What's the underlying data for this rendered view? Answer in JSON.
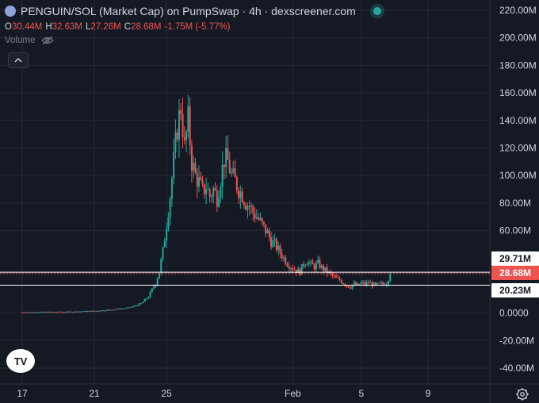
{
  "header": {
    "title": "PENGUIN/SOL (Market Cap) on PumpSwap · 4h · dexscreener.com",
    "ohlc": {
      "o_label": "O",
      "o_value": "30.44M",
      "h_label": "H",
      "h_value": "32.63M",
      "l_label": "L",
      "l_value": "27.26M",
      "c_label": "C",
      "c_value": "28.68M",
      "change": "-1.75M (-5.77%)"
    },
    "volume_label": "Volume"
  },
  "colors": {
    "up": "#26a69a",
    "down": "#ef5350",
    "background": "#151924",
    "grid": "#252a37"
  },
  "icons": {
    "symbol": "penguin-token-icon",
    "live": "live-status-dot",
    "eye": "eye-off-icon",
    "collapse": "chevron-up-icon",
    "logo": "tradingview-logo",
    "settings": "settings-icon"
  },
  "logo_text": "TV",
  "chart_data": {
    "type": "candlestick",
    "title": "PENGUIN/SOL (Market Cap) on PumpSwap · 4h · dexscreener.com",
    "y_tick_labels": [
      "220.00M",
      "200.00M",
      "180.00M",
      "160.00M",
      "140.00M",
      "120.00M",
      "100.00M",
      "80.00M",
      "60.00M",
      "0.0000",
      "-20.00M",
      "-40.00M"
    ],
    "y_ticks": [
      220,
      200,
      180,
      160,
      140,
      120,
      100,
      80,
      60,
      0,
      -20,
      -40
    ],
    "x_tick_labels": [
      "17",
      "21",
      "25",
      "Feb",
      "5",
      "9"
    ],
    "x_tick_index": [
      0,
      40,
      80,
      150,
      188,
      225
    ],
    "ylim": [
      -45,
      225
    ],
    "grid": true,
    "price_markers": [
      {
        "label": "29.71M",
        "value": 29.71,
        "style": "white"
      },
      {
        "label": "28.68M",
        "value": 28.68,
        "style": "red"
      },
      {
        "label": "20.23M",
        "value": 20.23,
        "style": "white"
      }
    ],
    "anchors": [
      [
        0,
        0.5
      ],
      [
        25,
        0.8
      ],
      [
        40,
        1.5
      ],
      [
        50,
        2.5
      ],
      [
        60,
        4
      ],
      [
        66,
        7
      ],
      [
        70,
        12
      ],
      [
        74,
        22
      ],
      [
        76,
        30
      ],
      [
        78,
        45
      ],
      [
        80,
        65
      ],
      [
        82,
        85
      ],
      [
        84,
        110
      ],
      [
        86,
        135
      ],
      [
        88,
        150
      ],
      [
        90,
        120
      ],
      [
        92,
        140
      ],
      [
        94,
        110
      ],
      [
        96,
        100
      ],
      [
        98,
        95
      ],
      [
        100,
        88
      ],
      [
        102,
        92
      ],
      [
        104,
        85
      ],
      [
        106,
        90
      ],
      [
        108,
        84
      ],
      [
        110,
        98
      ],
      [
        112,
        112
      ],
      [
        114,
        110
      ],
      [
        116,
        100
      ],
      [
        118,
        96
      ],
      [
        120,
        90
      ],
      [
        122,
        86
      ],
      [
        124,
        80
      ],
      [
        126,
        78
      ],
      [
        128,
        73
      ],
      [
        130,
        70
      ],
      [
        132,
        66
      ],
      [
        134,
        62
      ],
      [
        136,
        58
      ],
      [
        138,
        52
      ],
      [
        140,
        50
      ],
      [
        142,
        46
      ],
      [
        144,
        42
      ],
      [
        146,
        38
      ],
      [
        148,
        35
      ],
      [
        150,
        33
      ],
      [
        152,
        31
      ],
      [
        154,
        30
      ],
      [
        156,
        36
      ],
      [
        158,
        38
      ],
      [
        160,
        35
      ],
      [
        162,
        34
      ],
      [
        164,
        36
      ],
      [
        166,
        33
      ],
      [
        168,
        31
      ],
      [
        170,
        29
      ],
      [
        172,
        27
      ],
      [
        174,
        25
      ],
      [
        176,
        24
      ],
      [
        178,
        22
      ],
      [
        180,
        20
      ],
      [
        182,
        19
      ],
      [
        184,
        21
      ],
      [
        186,
        20
      ],
      [
        188,
        22
      ],
      [
        190,
        21
      ],
      [
        192,
        22
      ],
      [
        194,
        21
      ],
      [
        196,
        20
      ],
      [
        198,
        21
      ],
      [
        200,
        21
      ],
      [
        202,
        22
      ],
      [
        204,
        28.68
      ]
    ]
  }
}
